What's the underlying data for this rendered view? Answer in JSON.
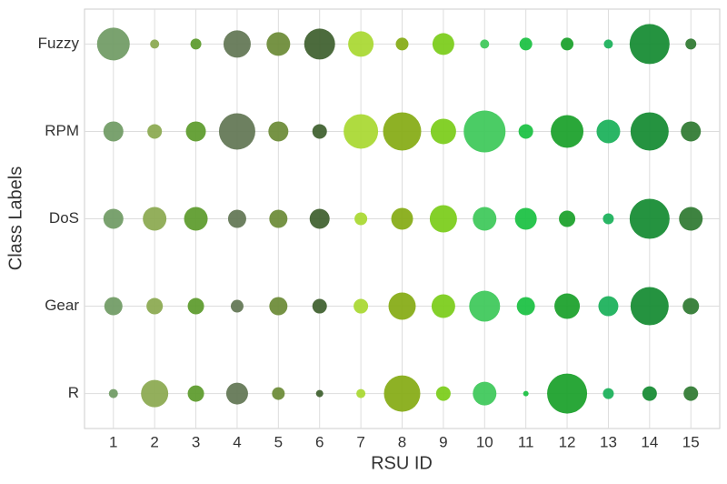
{
  "chart_data": {
    "type": "bubble",
    "xlabel": "RSU ID",
    "ylabel": "Class Labels",
    "x": [
      1,
      2,
      3,
      4,
      5,
      6,
      7,
      8,
      9,
      10,
      11,
      12,
      13,
      14,
      15
    ],
    "xlim": [
      0.3,
      15.7
    ],
    "xticks": [
      1,
      2,
      3,
      4,
      5,
      6,
      7,
      8,
      9,
      10,
      11,
      12,
      13,
      14,
      15
    ],
    "categories": [
      "R",
      "Gear",
      "DoS",
      "RPM",
      "Fuzzy"
    ],
    "grid": true,
    "series": [
      {
        "color": "#6f9a63",
        "sizes": [
          5,
          10,
          11,
          11,
          18
        ]
      },
      {
        "color": "#8aa84e",
        "sizes": [
          15,
          9,
          13,
          8,
          5
        ]
      },
      {
        "color": "#5b9a2a",
        "sizes": [
          9,
          9,
          13,
          11,
          6
        ]
      },
      {
        "color": "#617552",
        "sizes": [
          12,
          7,
          10,
          20,
          15
        ]
      },
      {
        "color": "#6a8a35",
        "sizes": [
          7,
          10,
          10,
          11,
          13
        ]
      },
      {
        "color": "#3d5e2d",
        "sizes": [
          4,
          8,
          11,
          8,
          17
        ]
      },
      {
        "color": "#a8d830",
        "sizes": [
          5,
          8,
          7,
          19,
          14
        ]
      },
      {
        "color": "#84aa12",
        "sizes": [
          20,
          15,
          12,
          21,
          7
        ]
      },
      {
        "color": "#7acc18",
        "sizes": [
          8,
          13,
          15,
          14,
          12
        ]
      },
      {
        "color": "#3cc858",
        "sizes": [
          13,
          17,
          13,
          23,
          5
        ]
      },
      {
        "color": "#18c040",
        "sizes": [
          3,
          10,
          12,
          8,
          7
        ]
      },
      {
        "color": "#18a028",
        "sizes": [
          22,
          14,
          9,
          18,
          7
        ]
      },
      {
        "color": "#18b058",
        "sizes": [
          6,
          11,
          6,
          13,
          5
        ]
      },
      {
        "color": "#128a30",
        "sizes": [
          8,
          21,
          22,
          21,
          22
        ]
      },
      {
        "color": "#2e7830",
        "sizes": [
          8,
          9,
          13,
          11,
          6
        ]
      }
    ]
  }
}
